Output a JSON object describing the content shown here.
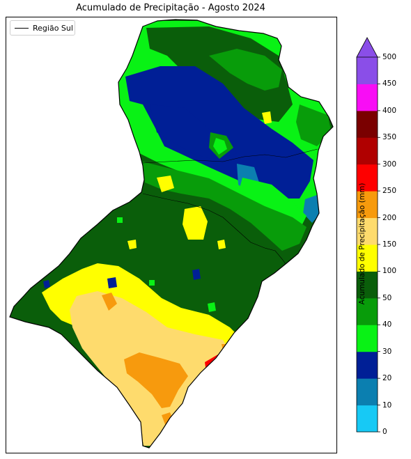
{
  "title": "Acumulado de Precipitação - Agosto 2024",
  "legend": {
    "label": "Região Sul"
  },
  "colorbar": {
    "label": "Acumulado de Precipitação (mm)",
    "levels": [
      "0",
      "10",
      "20",
      "30",
      "40",
      "50",
      "100",
      "150",
      "200",
      "250",
      "300",
      "350",
      "400",
      "450",
      "500"
    ],
    "colors": [
      "#17c9f5",
      "#0b7fb0",
      "#001f96",
      "#09f215",
      "#089c0a",
      "#0a5e0a",
      "#ffff00",
      "#fedb6d",
      "#f79a0d",
      "#fe0000",
      "#b00000",
      "#7a0000",
      "#f80df5",
      "#8a4ee8"
    ]
  }
}
